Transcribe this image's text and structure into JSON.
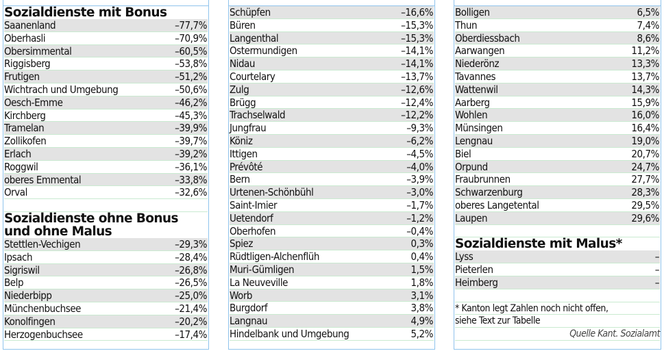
{
  "sections": {
    "bonus": {
      "title": "Sozialdienste mit Bonus",
      "rows": [
        {
          "name": "Saanenland",
          "value": "–77,7%"
        },
        {
          "name": "Oberhasli",
          "value": "–70,9%"
        },
        {
          "name": "Obersimmental",
          "value": "–60,5%"
        },
        {
          "name": "Riggisberg",
          "value": "–53,8%"
        },
        {
          "name": "Frutigen",
          "value": "–51,2%"
        },
        {
          "name": "Wichtrach und Umgebung",
          "value": "–50,6%"
        },
        {
          "name": "Oesch-Emme",
          "value": "–46,2%"
        },
        {
          "name": "Kirchberg",
          "value": "–45,3%"
        },
        {
          "name": "Tramelan",
          "value": "–39,9%"
        },
        {
          "name": "Zollikofen",
          "value": "–39,7%"
        },
        {
          "name": "Erlach",
          "value": "–39,2%"
        },
        {
          "name": "Roggwil",
          "value": "–36,1%"
        },
        {
          "name": "oberes Emmental",
          "value": "–33,8%"
        },
        {
          "name": "Orval",
          "value": "–32,6%"
        }
      ]
    },
    "neutral": {
      "title_line1": "Sozialdienste ohne Bonus",
      "title_line2": "und ohne Malus",
      "rows": [
        {
          "name": "Stettlen-Vechigen",
          "value": "–29,3%"
        },
        {
          "name": "Ipsach",
          "value": "–28,4%"
        },
        {
          "name": "Sigriswil",
          "value": "–26,8%"
        },
        {
          "name": "Belp",
          "value": "–26,5%"
        },
        {
          "name": "Niederbipp",
          "value": "–25,0%"
        },
        {
          "name": "Münchenbuchsee",
          "value": "–21,4%"
        },
        {
          "name": "Konolfingen",
          "value": "–20,2%"
        },
        {
          "name": "Herzogenbuchsee",
          "value": "–17,4%"
        },
        {
          "name": "Schüpfen",
          "value": "–16,6%"
        },
        {
          "name": "Büren",
          "value": "–15,3%"
        },
        {
          "name": "Langenthal",
          "value": "–15,3%"
        },
        {
          "name": "Ostermundigen",
          "value": "–14,1%"
        },
        {
          "name": "Nidau",
          "value": "–14,1%"
        },
        {
          "name": "Courtelary",
          "value": "–13,7%"
        },
        {
          "name": "Zulg",
          "value": "–12,6%"
        },
        {
          "name": "Brügg",
          "value": "–12,4%"
        },
        {
          "name": "Trachselwald",
          "value": "–12,2%"
        },
        {
          "name": "Jungfrau",
          "value": "–9,3%"
        },
        {
          "name": "Köniz",
          "value": "–6,2%"
        },
        {
          "name": "Ittigen",
          "value": "–4,5%"
        },
        {
          "name": "Prévôté",
          "value": "–4,0%"
        },
        {
          "name": "Bern",
          "value": "–3,9%"
        },
        {
          "name": "Urtenen-Schönbühl",
          "value": "–3,0%"
        },
        {
          "name": "Saint-Imier",
          "value": "–1,7%"
        },
        {
          "name": "Uetendorf",
          "value": "–1,2%"
        },
        {
          "name": "Oberhofen",
          "value": "–0,4%"
        },
        {
          "name": "Spiez",
          "value": "0,3%"
        },
        {
          "name": "Rüdtligen-Alchenflüh",
          "value": "0,4%"
        },
        {
          "name": "Muri-Gümligen",
          "value": "1,5%"
        },
        {
          "name": "La Neuveville",
          "value": "1,8%"
        },
        {
          "name": "Worb",
          "value": "3,1%"
        },
        {
          "name": "Burgdorf",
          "value": "3,8%"
        },
        {
          "name": "Langnau",
          "value": "4,9%"
        },
        {
          "name": "Hindelbank und Umgebung",
          "value": "5,2%"
        },
        {
          "name": "Bolligen",
          "value": "6,5%"
        },
        {
          "name": "Thun",
          "value": "7,4%"
        },
        {
          "name": "Oberdiessbach",
          "value": "8,6%"
        },
        {
          "name": "Aarwangen",
          "value": "11,2%"
        },
        {
          "name": "Niederönz",
          "value": "13,3%"
        },
        {
          "name": "Tavannes",
          "value": "13,7%"
        },
        {
          "name": "Wattenwil",
          "value": "14,3%"
        },
        {
          "name": "Aarberg",
          "value": "15,9%"
        },
        {
          "name": "Wohlen",
          "value": "16,0%"
        },
        {
          "name": "Münsingen",
          "value": "16,4%"
        },
        {
          "name": "Lengnau",
          "value": "19,0%"
        },
        {
          "name": "Biel",
          "value": "20,7%"
        },
        {
          "name": "Orpund",
          "value": "24,7%"
        },
        {
          "name": "Fraubrunnen",
          "value": "27,7%"
        },
        {
          "name": "Schwarzenburg",
          "value": "28,3%"
        },
        {
          "name": "oberes Langetental",
          "value": "29,5%"
        },
        {
          "name": "Laupen",
          "value": "29,6%"
        }
      ]
    },
    "malus": {
      "title": "Sozialdienste mit Malus*",
      "rows": [
        {
          "name": "Lyss",
          "value": "–"
        },
        {
          "name": "Pieterlen",
          "value": "–"
        },
        {
          "name": "Heimberg",
          "value": "–"
        }
      ]
    }
  },
  "footnote_line1": "* Kanton legt Zahlen noch nicht offen,",
  "footnote_line2": "siehe Text zur Tabelle",
  "source": "Quelle Kant. Sozialamt",
  "colors": {
    "row_shade": "#e3e3e3",
    "column_border": "#8fc3ec",
    "guide_line": "#c9ead0",
    "text": "#111111"
  }
}
